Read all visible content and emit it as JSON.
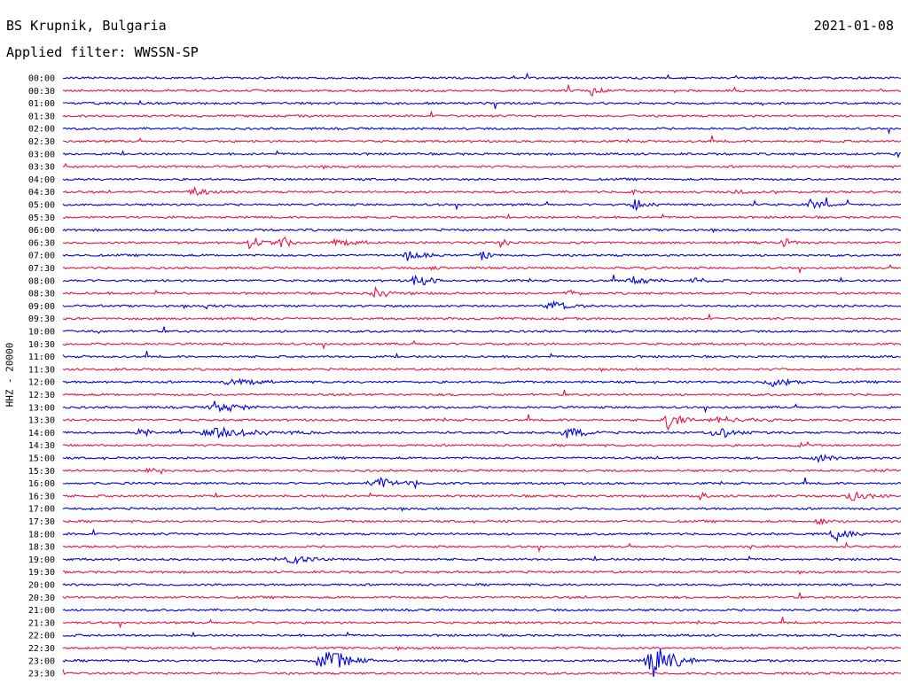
{
  "header": {
    "station": "BS Krupnik, Bulgaria",
    "date": "2021-01-08",
    "filter": "Applied filter: WWSSN-SP"
  },
  "chart_data": {
    "type": "line",
    "title": "BS Krupnik, Bulgaria",
    "ylabel": "HHZ - 20000",
    "colors": {
      "even": "#0000dd",
      "odd": "#ee1144",
      "background": "#ffffff"
    },
    "traces": [
      {
        "time": "00:00",
        "events": []
      },
      {
        "time": "00:30",
        "events": [
          {
            "x": 0.63,
            "amp": 7,
            "w": 0.02
          }
        ]
      },
      {
        "time": "01:00",
        "events": []
      },
      {
        "time": "01:30",
        "events": []
      },
      {
        "time": "02:00",
        "events": []
      },
      {
        "time": "02:30",
        "events": []
      },
      {
        "time": "03:00",
        "events": [
          {
            "x": 0.995,
            "amp": 7,
            "w": 0.005
          }
        ]
      },
      {
        "time": "03:30",
        "events": [
          {
            "x": 0.002,
            "amp": 6,
            "w": 0.005
          }
        ]
      },
      {
        "time": "04:00",
        "events": []
      },
      {
        "time": "04:30",
        "events": [
          {
            "x": 0.15,
            "amp": 7,
            "w": 0.04
          },
          {
            "x": 0.68,
            "amp": 5,
            "w": 0.01
          },
          {
            "x": 0.8,
            "amp": 4,
            "w": 0.02
          }
        ]
      },
      {
        "time": "05:00",
        "events": [
          {
            "x": 0.68,
            "amp": 12,
            "w": 0.03
          },
          {
            "x": 0.89,
            "amp": 8,
            "w": 0.025
          }
        ]
      },
      {
        "time": "05:30",
        "events": []
      },
      {
        "time": "06:00",
        "events": []
      },
      {
        "time": "06:30",
        "events": [
          {
            "x": 0.22,
            "amp": 10,
            "w": 0.03
          },
          {
            "x": 0.26,
            "amp": 10,
            "w": 0.02
          },
          {
            "x": 0.32,
            "amp": 6,
            "w": 0.05
          },
          {
            "x": 0.52,
            "amp": 14,
            "w": 0.01
          },
          {
            "x": 0.86,
            "amp": 7,
            "w": 0.02
          }
        ]
      },
      {
        "time": "07:00",
        "events": [
          {
            "x": 0.41,
            "amp": 7,
            "w": 0.04
          },
          {
            "x": 0.5,
            "amp": 9,
            "w": 0.015
          }
        ]
      },
      {
        "time": "07:30",
        "events": [
          {
            "x": 0.44,
            "amp": 6,
            "w": 0.01
          }
        ]
      },
      {
        "time": "08:00",
        "events": [
          {
            "x": 0.42,
            "amp": 16,
            "w": 0.025
          },
          {
            "x": 0.68,
            "amp": 6,
            "w": 0.04
          },
          {
            "x": 0.75,
            "amp": 7,
            "w": 0.02
          }
        ]
      },
      {
        "time": "08:30",
        "events": [
          {
            "x": 0.37,
            "amp": 8,
            "w": 0.04
          },
          {
            "x": 0.6,
            "amp": 5,
            "w": 0.02
          }
        ]
      },
      {
        "time": "09:00",
        "events": [
          {
            "x": 0.17,
            "amp": 5,
            "w": 0.005
          },
          {
            "x": 0.58,
            "amp": 8,
            "w": 0.04
          }
        ]
      },
      {
        "time": "09:30",
        "events": []
      },
      {
        "time": "10:00",
        "events": [
          {
            "x": 0.04,
            "amp": 4,
            "w": 0.01
          }
        ]
      },
      {
        "time": "10:30",
        "events": []
      },
      {
        "time": "11:00",
        "events": []
      },
      {
        "time": "11:30",
        "events": []
      },
      {
        "time": "12:00",
        "events": [
          {
            "x": 0.2,
            "amp": 7,
            "w": 0.05
          },
          {
            "x": 0.84,
            "amp": 7,
            "w": 0.05
          }
        ]
      },
      {
        "time": "12:30",
        "events": []
      },
      {
        "time": "13:00",
        "events": [
          {
            "x": 0.18,
            "amp": 8,
            "w": 0.05
          }
        ]
      },
      {
        "time": "13:30",
        "events": [
          {
            "x": 0.72,
            "amp": 14,
            "w": 0.03
          },
          {
            "x": 0.78,
            "amp": 5,
            "w": 0.06
          }
        ]
      },
      {
        "time": "14:00",
        "events": [
          {
            "x": 0.09,
            "amp": 9,
            "w": 0.02
          },
          {
            "x": 0.18,
            "amp": 7,
            "w": 0.1
          },
          {
            "x": 0.6,
            "amp": 9,
            "w": 0.04
          },
          {
            "x": 0.78,
            "amp": 8,
            "w": 0.04
          }
        ]
      },
      {
        "time": "14:30",
        "events": [
          {
            "x": 0.88,
            "amp": 5,
            "w": 0.01
          }
        ]
      },
      {
        "time": "15:00",
        "events": [
          {
            "x": 0.9,
            "amp": 5,
            "w": 0.04
          }
        ]
      },
      {
        "time": "15:30",
        "events": [
          {
            "x": 0.1,
            "amp": 5,
            "w": 0.02
          },
          {
            "x": 0.97,
            "amp": 5,
            "w": 0.02
          }
        ]
      },
      {
        "time": "16:00",
        "events": [
          {
            "x": 0.37,
            "amp": 9,
            "w": 0.05
          },
          {
            "x": 0.42,
            "amp": 6,
            "w": 0.005
          }
        ]
      },
      {
        "time": "16:30",
        "events": [
          {
            "x": 0.76,
            "amp": 10,
            "w": 0.01
          },
          {
            "x": 0.94,
            "amp": 8,
            "w": 0.04
          }
        ]
      },
      {
        "time": "17:00",
        "events": []
      },
      {
        "time": "17:30",
        "events": [
          {
            "x": 0.9,
            "amp": 6,
            "w": 0.03
          }
        ]
      },
      {
        "time": "18:00",
        "events": [
          {
            "x": 0.92,
            "amp": 10,
            "w": 0.03
          }
        ]
      },
      {
        "time": "18:30",
        "events": [
          {
            "x": 0.82,
            "amp": 5,
            "w": 0.005
          }
        ]
      },
      {
        "time": "19:00",
        "events": [
          {
            "x": 0.27,
            "amp": 7,
            "w": 0.04
          }
        ]
      },
      {
        "time": "19:30",
        "events": []
      },
      {
        "time": "20:00",
        "events": []
      },
      {
        "time": "20:30",
        "events": []
      },
      {
        "time": "21:00",
        "events": []
      },
      {
        "time": "21:30",
        "events": []
      },
      {
        "time": "22:00",
        "events": []
      },
      {
        "time": "22:30",
        "events": []
      },
      {
        "time": "23:00",
        "events": [
          {
            "x": 0.31,
            "amp": 26,
            "w": 0.05
          },
          {
            "x": 0.7,
            "amp": 26,
            "w": 0.05
          }
        ]
      },
      {
        "time": "23:30",
        "events": []
      }
    ]
  }
}
